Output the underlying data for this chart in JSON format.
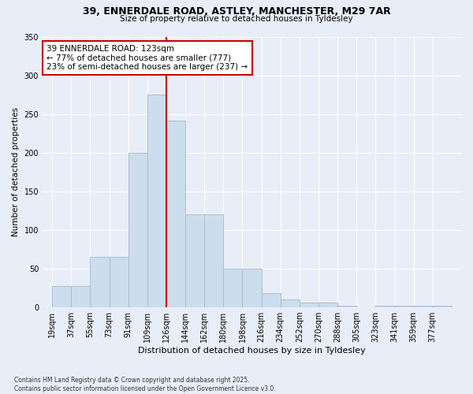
{
  "title_line1": "39, ENNERDALE ROAD, ASTLEY, MANCHESTER, M29 7AR",
  "title_line2": "Size of property relative to detached houses in Tyldesley",
  "xlabel": "Distribution of detached houses by size in Tyldesley",
  "ylabel": "Number of detached properties",
  "bin_labels": [
    "19sqm",
    "37sqm",
    "55sqm",
    "73sqm",
    "91sqm",
    "109sqm",
    "126sqm",
    "144sqm",
    "162sqm",
    "180sqm",
    "198sqm",
    "216sqm",
    "234sqm",
    "252sqm",
    "270sqm",
    "288sqm",
    "305sqm",
    "323sqm",
    "341sqm",
    "359sqm",
    "377sqm"
  ],
  "values": [
    28,
    28,
    65,
    65,
    200,
    275,
    242,
    120,
    120,
    50,
    50,
    18,
    10,
    6,
    6,
    2,
    0,
    2,
    2,
    2,
    2
  ],
  "bar_color": "#ccdded",
  "bar_edge_color": "#aabfcf",
  "vline_x_index": 6,
  "vline_color": "#cc0000",
  "annotation_text": "39 ENNERDALE ROAD: 123sqm\n← 77% of detached houses are smaller (777)\n23% of semi-detached houses are larger (237) →",
  "annotation_box_color": "#ffffff",
  "annotation_box_edge": "#cc0000",
  "ylim": [
    0,
    350
  ],
  "yticks": [
    0,
    50,
    100,
    150,
    200,
    250,
    300,
    350
  ],
  "footer": "Contains HM Land Registry data © Crown copyright and database right 2025.\nContains public sector information licensed under the Open Government Licence v3.0.",
  "bg_color": "#e8eef8",
  "plot_bg_color": "#e8eef8"
}
